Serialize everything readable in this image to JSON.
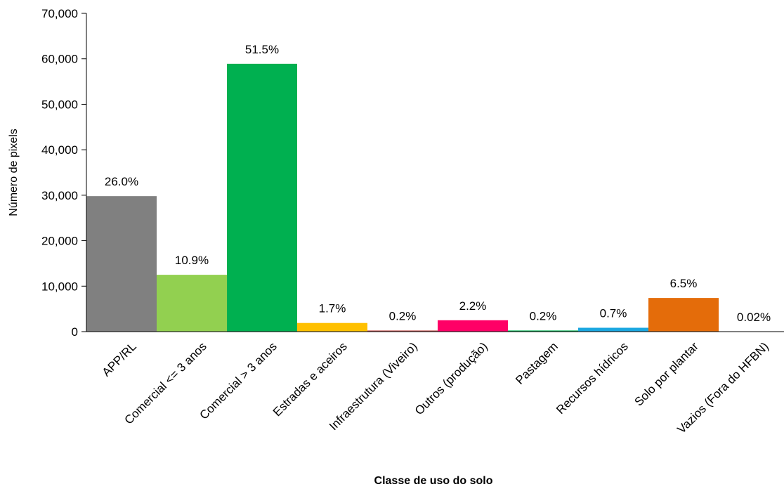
{
  "chart_data": {
    "type": "bar",
    "title": "",
    "xlabel": "Classe de uso do solo",
    "ylabel": "Número de pixels",
    "ylim": [
      0,
      70000
    ],
    "yticks": [
      0,
      10000,
      20000,
      30000,
      40000,
      50000,
      60000,
      70000
    ],
    "ytick_labels": [
      "0",
      "10,000",
      "20,000",
      "30,000",
      "40,000",
      "50,000",
      "60,000",
      "70,000"
    ],
    "grid": false,
    "legend": "none",
    "categories": [
      "APP/RL",
      "Comercial <= 3 anos",
      "Comercial > 3 anos",
      "Estradas e aceiros",
      "Infraestrutura (Viveiro)",
      "Outros (produção)",
      "Pastagem",
      "Recursos hídricos",
      "Solo por plantar",
      "Vazios (Fora do HFBN)"
    ],
    "values": [
      29800,
      12500,
      58900,
      1900,
      250,
      2500,
      250,
      850,
      7400,
      30
    ],
    "data_labels": [
      "26.0%",
      "10.9%",
      "51.5%",
      "1.7%",
      "0.2%",
      "2.2%",
      "0.2%",
      "0.7%",
      "6.5%",
      "0.02%"
    ],
    "colors": [
      "#808080",
      "#92d050",
      "#00b050",
      "#ffc000",
      "#c0504d",
      "#ff0066",
      "#00b050",
      "#1aa7e0",
      "#e46c0a",
      "#808080"
    ]
  }
}
